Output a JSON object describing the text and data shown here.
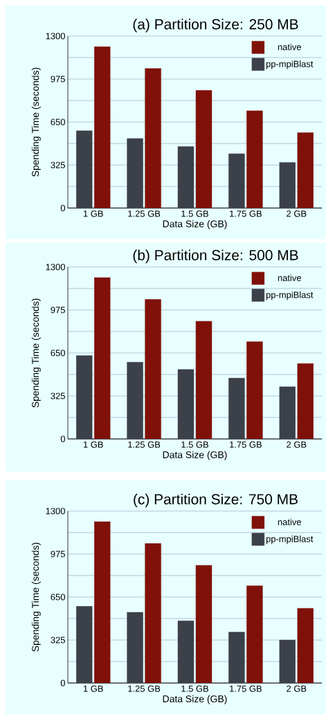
{
  "chart_data": [
    {
      "type": "bar",
      "title": "(a) Partition Size: 250 MB",
      "xlabel": "Data Size (GB)",
      "ylabel": "Spending Time (seconds)",
      "categories": [
        "1 GB",
        "1.25 GB",
        "1.5 GB",
        "1.75 GB",
        "2 GB"
      ],
      "series": [
        {
          "name": "pp-mpiBlast",
          "color": "#3c4049",
          "values": [
            585,
            525,
            465,
            410,
            345
          ]
        },
        {
          "name": "native",
          "color": "#7f1109",
          "values": [
            1220,
            1055,
            890,
            735,
            570
          ]
        }
      ],
      "ylim": [
        0,
        1300
      ],
      "yticks": [
        0,
        {
          "value": 162.5,
          "label": null
        },
        325,
        {
          "value": 487.5,
          "label": null
        },
        650,
        {
          "value": 812.5,
          "label": null
        },
        975,
        {
          "value": 1137.5,
          "label": null
        },
        1300
      ],
      "grid": "y",
      "legend": "top right"
    },
    {
      "type": "bar",
      "title": "(b) Partition Size: 500 MB",
      "xlabel": "Data Size (GB)",
      "ylabel": "Spending Time (seconds)",
      "categories": [
        "1 GB",
        "1.25 GB",
        "1.5 GB",
        "1.75 GB",
        "2 GB"
      ],
      "series": [
        {
          "name": "pp-mpiBlast",
          "color": "#3c4049",
          "values": [
            630,
            580,
            525,
            460,
            395
          ]
        },
        {
          "name": "native",
          "color": "#7f1109",
          "values": [
            1220,
            1055,
            890,
            735,
            570
          ]
        }
      ],
      "ylim": [
        0,
        1300
      ],
      "yticks": [
        0,
        {
          "value": 162.5,
          "label": null
        },
        325,
        {
          "value": 487.5,
          "label": null
        },
        650,
        {
          "value": 812.5,
          "label": null
        },
        975,
        {
          "value": 1137.5,
          "label": null
        },
        1300
      ],
      "grid": "y",
      "legend": "top right"
    },
    {
      "type": "bar",
      "title": "(c) Partition Size: 750 MB",
      "xlabel": "Data Size (GB)",
      "ylabel": "Spending Time (seconds)",
      "categories": [
        "1 GB",
        "1.25 GB",
        "1.5 GB",
        "1.75 GB",
        "2 GB"
      ],
      "series": [
        {
          "name": "pp-mpiBlast",
          "color": "#3c4049",
          "values": [
            580,
            535,
            470,
            385,
            325
          ]
        },
        {
          "name": "native",
          "color": "#7f1109",
          "values": [
            1220,
            1055,
            890,
            735,
            565
          ]
        }
      ],
      "ylim": [
        0,
        1300
      ],
      "yticks": [
        0,
        {
          "value": 162.5,
          "label": null
        },
        325,
        {
          "value": 487.5,
          "label": null
        },
        650,
        {
          "value": 812.5,
          "label": null
        },
        975,
        {
          "value": 1137.5,
          "label": null
        },
        1300
      ],
      "grid": "y",
      "legend": "top right"
    }
  ]
}
